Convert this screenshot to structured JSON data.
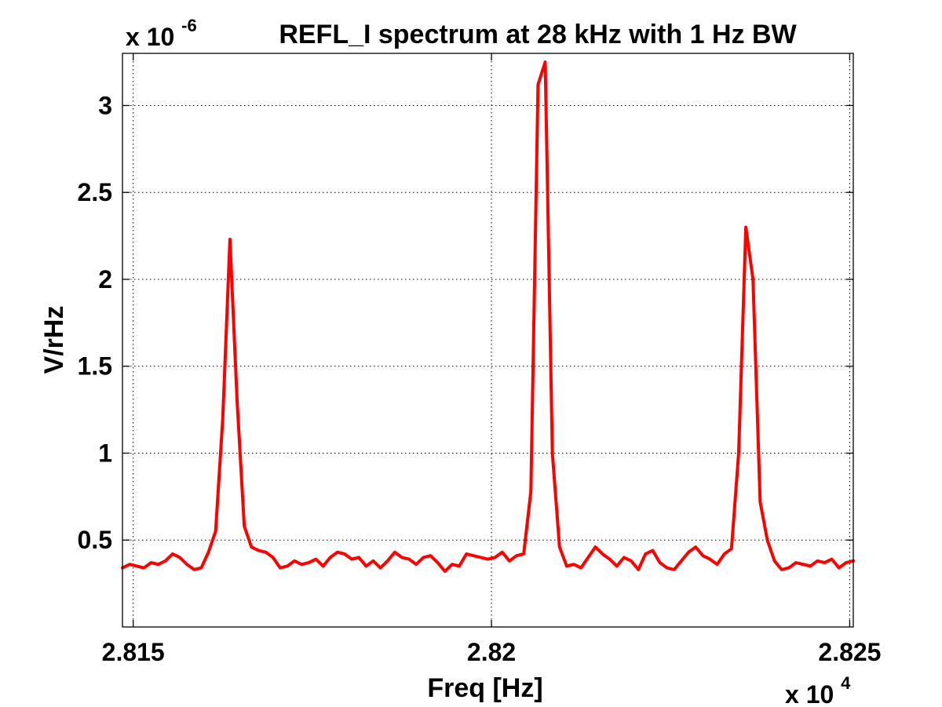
{
  "chart_data": {
    "type": "line",
    "title": "REFL_I spectrum at 28 kHz with 1 Hz BW",
    "xlabel": "Freq [Hz]",
    "ylabel": "V/rHz",
    "x_multiplier": "x 10",
    "x_exponent": "4",
    "y_multiplier": "x 10",
    "y_exponent": "-6",
    "xlim": [
      28148.5,
      28250.5
    ],
    "ylim": [
      0.0,
      3.3
    ],
    "xticks": [
      28150,
      28200,
      28250
    ],
    "xtick_labels": [
      "2.815",
      "2.82",
      "2.825"
    ],
    "yticks": [
      0.5,
      1,
      1.5,
      2,
      2.5,
      3
    ],
    "ytick_labels": [
      "0.5",
      "1",
      "1.5",
      "2",
      "2.5",
      "3"
    ],
    "grid": true,
    "series": [
      {
        "color": "#ff0000",
        "x": [
          28148.5,
          28149.5,
          28150.5,
          28151.5,
          28152.5,
          28153.5,
          28154.5,
          28155.5,
          28156.5,
          28157.5,
          28158.5,
          28159.5,
          28160.5,
          28161.5,
          28162.5,
          28163.5,
          28164.5,
          28165.5,
          28166.5,
          28167.5,
          28168.5,
          28169.5,
          28170.5,
          28171.5,
          28172.5,
          28173.5,
          28174.5,
          28175.5,
          28176.5,
          28177.5,
          28178.5,
          28179.5,
          28180.5,
          28181.5,
          28182.5,
          28183.5,
          28184.5,
          28185.5,
          28186.5,
          28187.5,
          28188.5,
          28189.5,
          28190.5,
          28191.5,
          28192.5,
          28193.5,
          28194.5,
          28195.5,
          28196.5,
          28197.5,
          28198.5,
          28199.5,
          28200.5,
          28201.5,
          28202.5,
          28203.5,
          28204.5,
          28205.5,
          28206.5,
          28207.5,
          28208.5,
          28209.5,
          28210.5,
          28211.5,
          28212.5,
          28213.5,
          28214.5,
          28215.5,
          28216.5,
          28217.5,
          28218.5,
          28219.5,
          28220.5,
          28221.5,
          28222.5,
          28223.5,
          28224.5,
          28225.5,
          28226.5,
          28227.5,
          28228.5,
          28229.5,
          28230.5,
          28231.5,
          28232.5,
          28233.5,
          28234.5,
          28235.5,
          28236.5,
          28237.5,
          28238.5,
          28239.5,
          28240.5,
          28241.5,
          28242.5,
          28243.5,
          28244.5,
          28245.5,
          28246.5,
          28247.5,
          28248.5,
          28249.5,
          28250.5
        ],
        "y": [
          0.34,
          0.36,
          0.35,
          0.34,
          0.37,
          0.36,
          0.38,
          0.42,
          0.4,
          0.36,
          0.33,
          0.34,
          0.43,
          0.55,
          1.2,
          2.23,
          1.3,
          0.58,
          0.46,
          0.44,
          0.43,
          0.4,
          0.34,
          0.35,
          0.38,
          0.36,
          0.37,
          0.39,
          0.35,
          0.4,
          0.43,
          0.42,
          0.39,
          0.4,
          0.35,
          0.38,
          0.34,
          0.38,
          0.43,
          0.4,
          0.39,
          0.36,
          0.4,
          0.41,
          0.37,
          0.32,
          0.36,
          0.35,
          0.42,
          0.41,
          0.4,
          0.39,
          0.4,
          0.43,
          0.38,
          0.41,
          0.42,
          0.78,
          3.12,
          3.25,
          1.0,
          0.46,
          0.35,
          0.36,
          0.34,
          0.4,
          0.46,
          0.42,
          0.39,
          0.35,
          0.4,
          0.38,
          0.33,
          0.42,
          0.44,
          0.37,
          0.34,
          0.33,
          0.38,
          0.43,
          0.46,
          0.41,
          0.39,
          0.36,
          0.42,
          0.45,
          1.0,
          2.3,
          2.0,
          0.72,
          0.5,
          0.38,
          0.33,
          0.34,
          0.37,
          0.36,
          0.35,
          0.38,
          0.37,
          0.39,
          0.34,
          0.37,
          0.38
        ]
      }
    ]
  }
}
